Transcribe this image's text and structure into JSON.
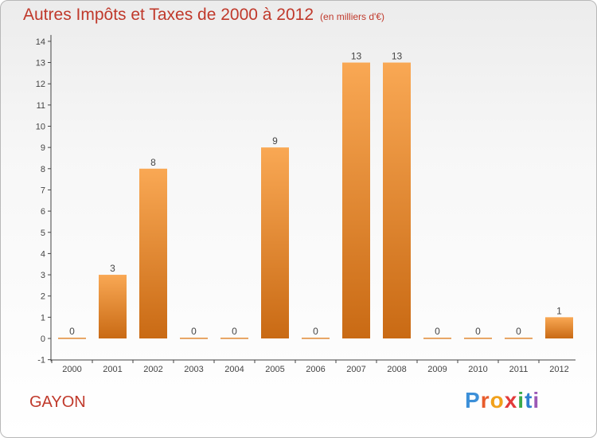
{
  "title": "Autres Impôts et Taxes de 2000 à 2012",
  "unit": "(en milliers d'€)",
  "commune": "GAYON",
  "brand": {
    "letters": [
      "P",
      "r",
      "o",
      "x",
      "i",
      "t",
      "i"
    ],
    "colors": [
      "#3c8fd8",
      "#e85c2c",
      "#f1a11b",
      "#e23a3a",
      "#3aaa4a",
      "#2f7fd0",
      "#9b59b6"
    ]
  },
  "chart_data": {
    "type": "bar",
    "categories": [
      "2000",
      "2001",
      "2002",
      "2003",
      "2004",
      "2005",
      "2006",
      "2007",
      "2008",
      "2009",
      "2010",
      "2011",
      "2012"
    ],
    "values": [
      0,
      3,
      8,
      0,
      0,
      9,
      0,
      13,
      13,
      0,
      0,
      0,
      1
    ],
    "data_labels": [
      "0",
      "3",
      "8",
      "0",
      "0",
      "9",
      "0",
      "13",
      "13",
      "0",
      "0",
      "0",
      "1"
    ],
    "y_ticks": [
      "-1",
      "0",
      "1",
      "2",
      "3",
      "4",
      "5",
      "6",
      "7",
      "8",
      "9",
      "10",
      "11",
      "12",
      "13",
      "14"
    ],
    "ylim": [
      -1,
      14
    ],
    "grid": false,
    "bar_color": "#f39c3c"
  }
}
